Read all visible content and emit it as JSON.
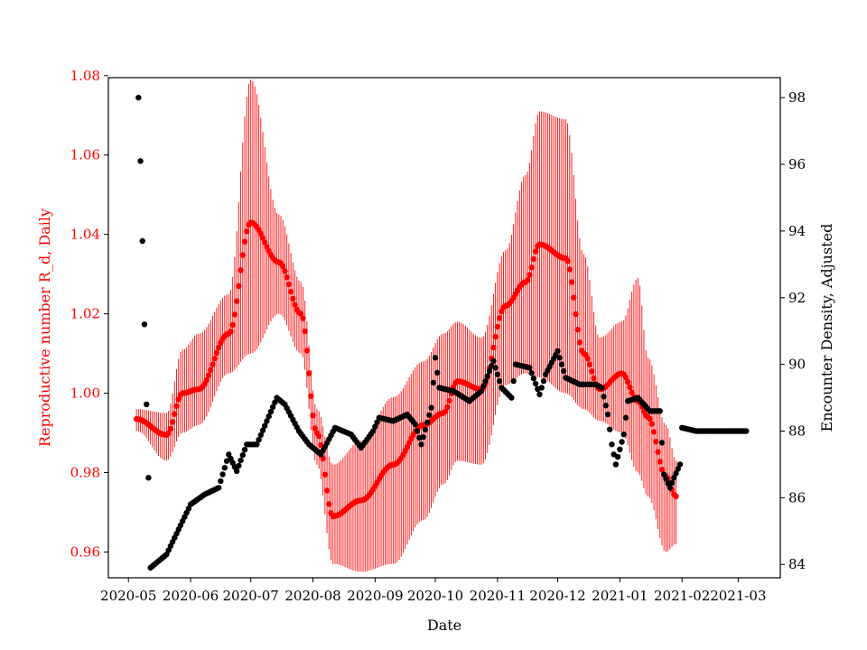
{
  "chart_data": {
    "type": "scatter",
    "xlabel": "Date",
    "ylabel_left": "Reproductive number R_d, Daily",
    "ylabel_right": "Encounter Density, Adjusted",
    "x_range": [
      "2020-04-21",
      "2021-03-22"
    ],
    "y_left_range": [
      0.9535,
      1.0795
    ],
    "y_right_range": [
      83.6,
      98.6
    ],
    "x_ticks": [
      "2020-05",
      "2020-06",
      "2020-07",
      "2020-08",
      "2020-09",
      "2020-10",
      "2020-11",
      "2020-12",
      "2021-01",
      "2021-02",
      "2021-03"
    ],
    "y_left_ticks": [
      0.96,
      0.98,
      1.0,
      1.02,
      1.04,
      1.06,
      1.08
    ],
    "y_left_tick_labels": [
      "0.96",
      "0.98",
      "1.00",
      "1.02",
      "1.04",
      "1.06",
      "1.08"
    ],
    "y_right_ticks": [
      84,
      86,
      88,
      90,
      92,
      94,
      96,
      98
    ],
    "y_right_tick_labels": [
      "84",
      "86",
      "88",
      "90",
      "92",
      "94",
      "96",
      "98"
    ],
    "grid": false,
    "colors": {
      "reproductive": "#ff0000",
      "encounter": "#000000",
      "axes": "#000000"
    },
    "series": [
      {
        "axis": "left",
        "marker": "circle",
        "error_bars": true,
        "start": "2020-05-05",
        "end": "2021-01-29",
        "keypoints": [
          [
            "2020-05-05",
            0.9935,
            0.996,
            0.9905
          ],
          [
            "2020-05-20",
            0.9895,
            0.995,
            0.983
          ],
          [
            "2020-05-28",
            1.0,
            1.011,
            0.99
          ],
          [
            "2020-06-05",
            1.001,
            1.015,
            0.992
          ],
          [
            "2020-06-20",
            1.015,
            1.025,
            1.005
          ],
          [
            "2020-07-01",
            1.043,
            1.079,
            1.01
          ],
          [
            "2020-07-15",
            1.033,
            1.045,
            1.02
          ],
          [
            "2020-07-26",
            1.02,
            1.028,
            1.01
          ],
          [
            "2020-08-03",
            0.99,
            0.996,
            0.982
          ],
          [
            "2020-08-11",
            0.969,
            0.982,
            0.957
          ],
          [
            "2020-08-25",
            0.973,
            0.988,
            0.955
          ],
          [
            "2020-09-10",
            0.982,
            0.999,
            0.957
          ],
          [
            "2020-09-25",
            0.992,
            1.008,
            0.968
          ],
          [
            "2020-10-05",
            0.995,
            1.015,
            0.977
          ],
          [
            "2020-10-12",
            1.003,
            1.018,
            0.983
          ],
          [
            "2020-10-24",
            1.001,
            1.014,
            0.982
          ],
          [
            "2020-11-05",
            1.022,
            1.036,
            1.002
          ],
          [
            "2020-11-15",
            1.028,
            1.055,
            1.005
          ],
          [
            "2020-11-22",
            1.0375,
            1.071,
            1.004
          ],
          [
            "2020-12-05",
            1.034,
            1.069,
            1.0
          ],
          [
            "2020-12-14",
            1.01,
            1.035,
            0.996
          ],
          [
            "2020-12-22",
            1.001,
            1.014,
            0.993
          ],
          [
            "2021-01-02",
            1.005,
            1.018,
            0.99
          ],
          [
            "2021-01-10",
            0.998,
            1.029,
            0.98
          ],
          [
            "2021-01-15",
            0.994,
            1.009,
            0.974
          ],
          [
            "2021-01-24",
            0.979,
            0.992,
            0.96
          ],
          [
            "2021-01-29",
            0.974,
            0.983,
            0.962
          ]
        ]
      },
      {
        "axis": "right",
        "marker": "circle",
        "points": [
          [
            "2020-05-06",
            98.0
          ],
          [
            "2020-05-07",
            96.1
          ],
          [
            "2020-05-08",
            93.7
          ],
          [
            "2020-05-09",
            91.2
          ],
          [
            "2020-05-10",
            88.8
          ],
          [
            "2020-05-11",
            86.6
          ],
          [
            "2020-05-12",
            83.9
          ],
          [
            "2020-05-20",
            84.3
          ],
          [
            "2020-06-01",
            85.8
          ],
          [
            "2020-06-08",
            86.1
          ],
          [
            "2020-06-15",
            86.3
          ],
          [
            "2020-06-20",
            87.3
          ],
          [
            "2020-06-24",
            86.8
          ],
          [
            "2020-06-29",
            87.6
          ],
          [
            "2020-07-04",
            87.6
          ],
          [
            "2020-07-09",
            88.3
          ],
          [
            "2020-07-14",
            89.0
          ],
          [
            "2020-07-18",
            88.8
          ],
          [
            "2020-07-25",
            88.0
          ],
          [
            "2020-07-30",
            87.6
          ],
          [
            "2020-08-05",
            87.3
          ],
          [
            "2020-08-12",
            88.1
          ],
          [
            "2020-08-20",
            87.9
          ],
          [
            "2020-08-25",
            87.5
          ],
          [
            "2020-08-31",
            88.0
          ],
          [
            "2020-09-03",
            88.4
          ],
          [
            "2020-09-10",
            88.3
          ],
          [
            "2020-09-17",
            88.5
          ],
          [
            "2020-09-21",
            88.2
          ],
          [
            "2020-09-24",
            87.6
          ],
          [
            "2020-09-29",
            88.7
          ],
          [
            "2020-10-01",
            90.2
          ],
          [
            "2020-10-03",
            89.3
          ],
          [
            "2020-10-10",
            89.2
          ],
          [
            "2020-10-18",
            88.9
          ],
          [
            "2020-10-24",
            89.2
          ],
          [
            "2020-10-30",
            90.1
          ],
          [
            "2020-11-03",
            89.3
          ],
          [
            "2020-11-08",
            89.0
          ],
          [
            "2020-11-10",
            90.0
          ],
          [
            "2020-11-17",
            89.9
          ],
          [
            "2020-11-22",
            89.1
          ],
          [
            "2020-11-25",
            89.7
          ],
          [
            "2020-12-01",
            90.4
          ],
          [
            "2020-12-05",
            89.6
          ],
          [
            "2020-12-12",
            89.4
          ],
          [
            "2020-12-20",
            89.4
          ],
          [
            "2020-12-23",
            89.3
          ],
          [
            "2020-12-26",
            88.5
          ],
          [
            "2020-12-28",
            87.6
          ],
          [
            "2020-12-30",
            87.0
          ],
          [
            "2021-01-03",
            87.9
          ],
          [
            "2021-01-05",
            88.9
          ],
          [
            "2021-01-10",
            89.0
          ],
          [
            "2021-01-16",
            88.6
          ],
          [
            "2021-01-21",
            88.6
          ],
          [
            "2021-01-23",
            86.7
          ],
          [
            "2021-01-26",
            86.3
          ],
          [
            "2021-01-28",
            86.6
          ],
          [
            "2021-01-31",
            87.0
          ],
          [
            "2021-02-01",
            88.1
          ],
          [
            "2021-02-08",
            88.0
          ],
          [
            "2021-03-05",
            88.0
          ]
        ]
      }
    ]
  }
}
